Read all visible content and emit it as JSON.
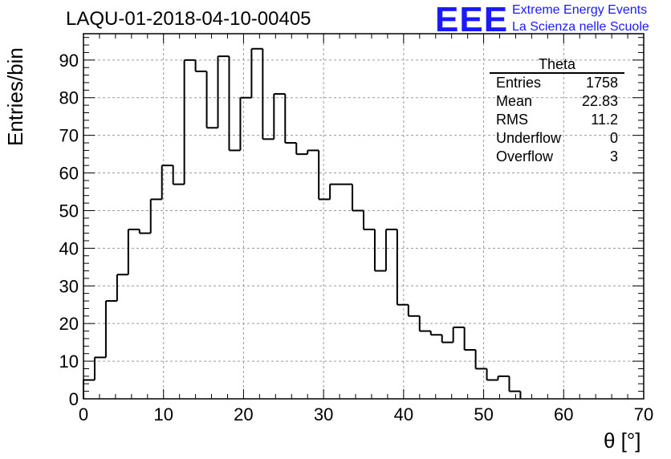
{
  "chart_data": {
    "type": "histogram",
    "title": "LAQU-01-2018-04-10-00405",
    "xlabel": "θ [°]",
    "ylabel": "Entries/bin",
    "xlim": [
      0,
      70
    ],
    "ylim": [
      0,
      97
    ],
    "grid": true,
    "bin_width": 1.4,
    "bin_start": 0,
    "values": [
      5,
      11,
      26,
      33,
      45,
      44,
      53,
      62,
      57,
      90,
      87,
      72,
      91,
      66,
      80,
      93,
      69,
      81,
      68,
      65,
      66,
      53,
      57,
      57,
      50,
      45,
      34,
      45,
      25,
      22,
      18,
      17,
      15,
      19,
      13,
      8,
      5,
      6,
      2
    ],
    "x_ticks": [
      "0",
      "10",
      "20",
      "30",
      "40",
      "50",
      "60",
      "70"
    ],
    "y_ticks": [
      "0",
      "10",
      "20",
      "30",
      "40",
      "50",
      "60",
      "70",
      "80",
      "90"
    ]
  },
  "stats_box": {
    "title": "Theta",
    "rows": [
      {
        "label": "Entries",
        "value": "1758"
      },
      {
        "label": "Mean",
        "value": "22.83"
      },
      {
        "label": "RMS",
        "value": "11.2"
      },
      {
        "label": "Underflow",
        "value": "0"
      },
      {
        "label": "Overflow",
        "value": "3"
      }
    ]
  },
  "logo": {
    "mark": "EEE",
    "line1": "Extreme Energy Events",
    "line2": "La Scienza nelle Scuole",
    "color": "#1a1aff"
  }
}
